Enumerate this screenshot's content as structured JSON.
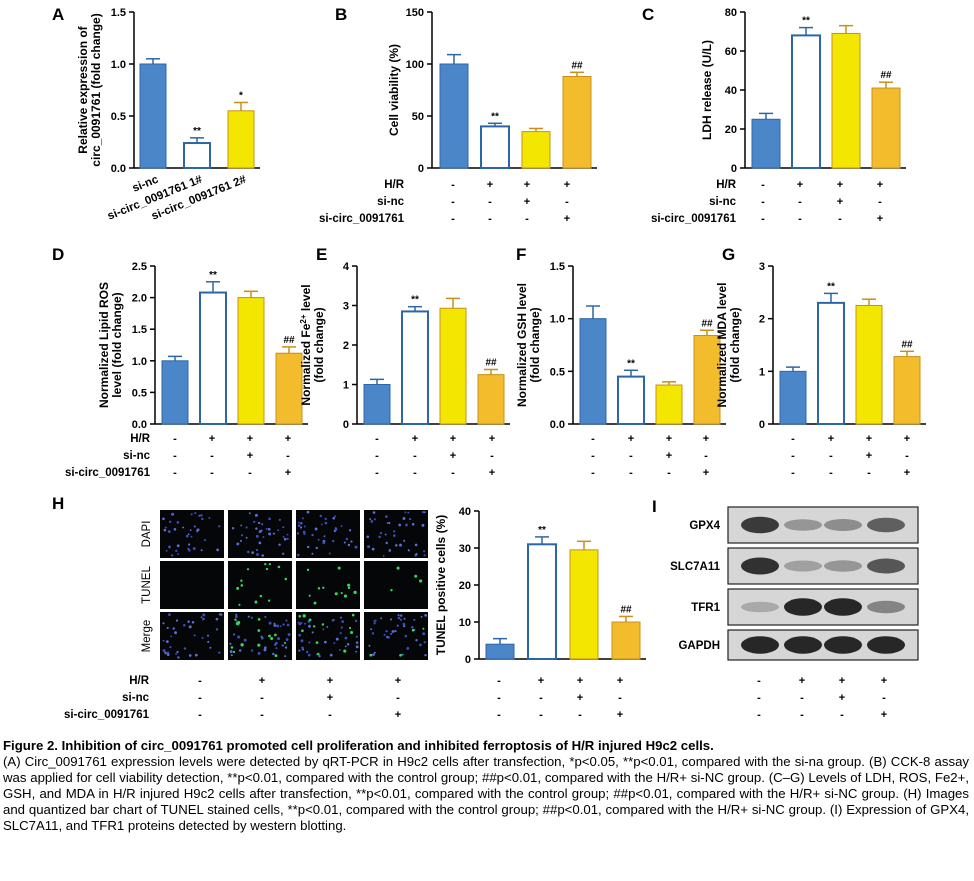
{
  "colors": {
    "blue": "#4a86c8",
    "white": "#ffffff",
    "yellow": "#f3e600",
    "orange": "#f2bc2c",
    "edge_blue": "#2d66a8",
    "edge_orange": "#c8901a"
  },
  "panel_letters": [
    "A",
    "B",
    "C",
    "D",
    "E",
    "F",
    "G",
    "H",
    "I"
  ],
  "condition_rows": {
    "labels": [
      "H/R",
      "si-nc",
      "si-circ_0091761"
    ],
    "signs": [
      [
        "-",
        "+",
        "+",
        "+"
      ],
      [
        "-",
        "-",
        "+",
        "-"
      ],
      [
        "-",
        "-",
        "-",
        "+"
      ]
    ]
  },
  "tunnel_images": {
    "row_labels": [
      "DAPI",
      "TUNEL",
      "Merge"
    ]
  },
  "western_blot": {
    "proteins": [
      "GPX4",
      "SLC7A11",
      "TFR1",
      "GAPDH"
    ],
    "band_intensity": [
      [
        0.85,
        0.35,
        0.4,
        0.65
      ],
      [
        0.9,
        0.3,
        0.35,
        0.7
      ],
      [
        0.25,
        0.95,
        0.95,
        0.45
      ],
      [
        0.95,
        0.95,
        0.95,
        0.95
      ]
    ]
  },
  "chart_data": [
    {
      "panel": "A",
      "type": "bar",
      "categories": [
        "si-nc",
        "si-circ_0091761 1#",
        "si-circ_0091761 2#"
      ],
      "values": [
        1.0,
        0.24,
        0.55
      ],
      "errors": [
        0.05,
        0.05,
        0.08
      ],
      "sig": [
        "",
        "**",
        "*"
      ],
      "ylabel_lines": [
        "Relative expression of",
        "circ_0091761 (fold change)"
      ],
      "ylim": [
        0,
        1.5
      ],
      "yticks": [
        "0.0",
        "0.5",
        "1.0",
        "1.5"
      ],
      "colors": [
        "blue",
        "white",
        "yellow"
      ]
    },
    {
      "panel": "B",
      "type": "bar",
      "categories": [
        "control",
        "H/R",
        "H/R+si-nc",
        "H/R+si-circ_0091761"
      ],
      "values": [
        100,
        40,
        35,
        88
      ],
      "errors": [
        9,
        3,
        3,
        4
      ],
      "sig": [
        "",
        "**",
        "",
        "##"
      ],
      "ylabel_lines": [
        "Cell viability (%)"
      ],
      "ylim": [
        0,
        150
      ],
      "yticks": [
        "0",
        "50",
        "100",
        "150"
      ],
      "colors": [
        "blue",
        "white",
        "yellow",
        "orange"
      ]
    },
    {
      "panel": "C",
      "type": "bar",
      "categories": [
        "control",
        "H/R",
        "H/R+si-nc",
        "H/R+si-circ_0091761"
      ],
      "values": [
        25,
        68,
        69,
        41
      ],
      "errors": [
        3,
        4,
        4,
        3
      ],
      "sig": [
        "",
        "**",
        "",
        "##"
      ],
      "ylabel_lines": [
        "LDH release (U/L)"
      ],
      "ylim": [
        0,
        80
      ],
      "yticks": [
        "0",
        "20",
        "40",
        "60",
        "80"
      ],
      "colors": [
        "blue",
        "white",
        "yellow",
        "orange"
      ]
    },
    {
      "panel": "D",
      "type": "bar",
      "categories": [
        "control",
        "H/R",
        "H/R+si-nc",
        "H/R+si-circ_0091761"
      ],
      "values": [
        1.0,
        2.08,
        2.0,
        1.12
      ],
      "errors": [
        0.07,
        0.17,
        0.1,
        0.1
      ],
      "sig": [
        "",
        "**",
        "",
        "##"
      ],
      "ylabel_lines": [
        "Normalized Lipid ROS",
        "level (fold change)"
      ],
      "ylim": [
        0,
        2.5
      ],
      "yticks": [
        "0.0",
        "0.5",
        "1.0",
        "1.5",
        "2.0",
        "2.5"
      ],
      "colors": [
        "blue",
        "white",
        "yellow",
        "orange"
      ]
    },
    {
      "panel": "E",
      "type": "bar",
      "categories": [
        "control",
        "H/R",
        "H/R+si-nc",
        "H/R+si-circ_0091761"
      ],
      "values": [
        1.0,
        2.85,
        2.93,
        1.25
      ],
      "errors": [
        0.13,
        0.12,
        0.25,
        0.13
      ],
      "sig": [
        "",
        "**",
        "",
        "##"
      ],
      "ylabel_lines": [
        "Normalized Fe2+ level",
        "(fold change)"
      ],
      "ylim": [
        0,
        4
      ],
      "yticks": [
        "0",
        "1",
        "2",
        "3",
        "4"
      ],
      "colors": [
        "blue",
        "white",
        "yellow",
        "orange"
      ]
    },
    {
      "panel": "F",
      "type": "bar",
      "categories": [
        "control",
        "H/R",
        "H/R+si-nc",
        "H/R+si-circ_0091761"
      ],
      "values": [
        1.0,
        0.45,
        0.37,
        0.84
      ],
      "errors": [
        0.12,
        0.06,
        0.03,
        0.05
      ],
      "sig": [
        "",
        "**",
        "",
        "##"
      ],
      "ylabel_lines": [
        "Normalized GSH level",
        "(fold change)"
      ],
      "ylim": [
        0,
        1.5
      ],
      "yticks": [
        "0.0",
        "0.5",
        "1.0",
        "1.5"
      ],
      "colors": [
        "blue",
        "white",
        "yellow",
        "orange"
      ]
    },
    {
      "panel": "G",
      "type": "bar",
      "categories": [
        "control",
        "H/R",
        "H/R+si-nc",
        "H/R+si-circ_0091761"
      ],
      "values": [
        1.0,
        2.3,
        2.25,
        1.28
      ],
      "errors": [
        0.08,
        0.18,
        0.12,
        0.1
      ],
      "sig": [
        "",
        "**",
        "",
        "##"
      ],
      "ylabel_lines": [
        "Normalized MDA level",
        "(fold change)"
      ],
      "ylim": [
        0,
        3
      ],
      "yticks": [
        "0",
        "1",
        "2",
        "3"
      ],
      "colors": [
        "blue",
        "white",
        "yellow",
        "orange"
      ]
    },
    {
      "panel": "H",
      "type": "bar",
      "categories": [
        "control",
        "H/R",
        "H/R+si-nc",
        "H/R+si-circ_0091761"
      ],
      "values": [
        4,
        31,
        29.5,
        10
      ],
      "errors": [
        1.5,
        2,
        2.3,
        1.5
      ],
      "sig": [
        "",
        "**",
        "",
        "##"
      ],
      "ylabel_lines": [
        "TUNEL positive cells (%)"
      ],
      "ylim": [
        0,
        40
      ],
      "yticks": [
        "0",
        "10",
        "20",
        "30",
        "40"
      ],
      "colors": [
        "blue",
        "white",
        "yellow",
        "orange"
      ]
    }
  ],
  "caption": {
    "title": "Figure 2. Inhibition of circ_0091761 promoted cell proliferation and inhibited ferroptosis of H/R injured H9c2 cells.",
    "body": "(A) Circ_0091761 expression levels were detected by qRT-PCR in H9c2 cells after transfection, *p<0.05, **p<0.01, compared with the si-na group. (B) CCK-8 assay was applied for cell viability detection, **p<0.01, compared with the control group; ##p<0.01, compared with the H/R+ si-NC group. (C–G) Levels of LDH, ROS, Fe2+, GSH, and MDA in H/R injured H9c2 cells after transfection, **p<0.01, compared with the control group; ##p<0.01, compared with the H/R+ si-NC group. (H) Images and quantized bar chart of TUNEL stained cells, **p<0.01, compared with the control group; ##p<0.01, compared with the H/R+ si-NC group. (I) Expression of GPX4, SLC7A11, and TFR1 proteins detected by western blotting."
  }
}
